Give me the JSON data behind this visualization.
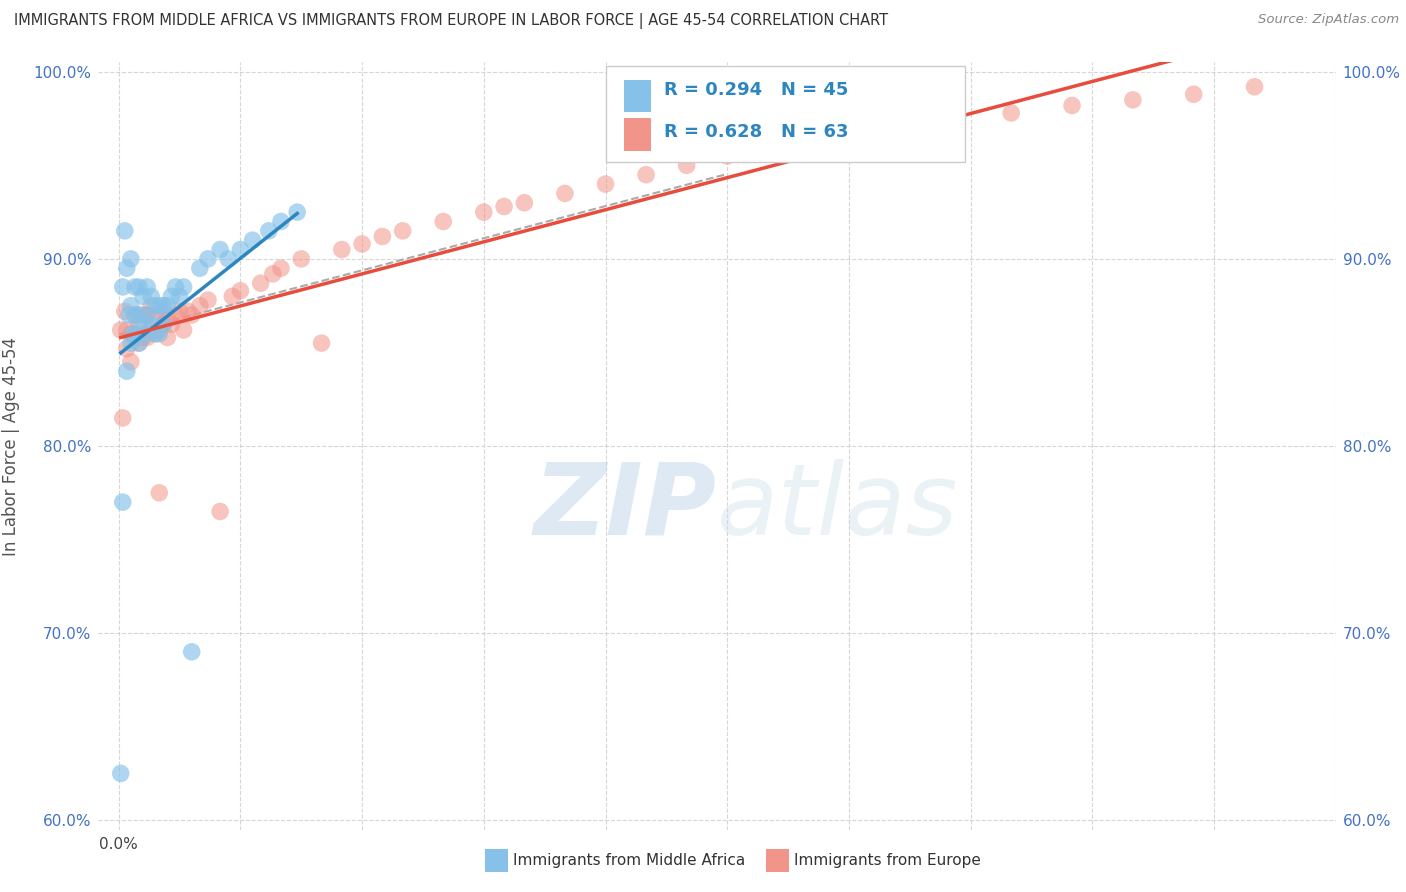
{
  "title": "IMMIGRANTS FROM MIDDLE AFRICA VS IMMIGRANTS FROM EUROPE IN LABOR FORCE | AGE 45-54 CORRELATION CHART",
  "source": "Source: ZipAtlas.com",
  "ylabel": "In Labor Force | Age 45-54",
  "legend_label1": "Immigrants from Middle Africa",
  "legend_label2": "Immigrants from Europe",
  "R1": 0.294,
  "N1": 45,
  "R2": 0.628,
  "N2": 63,
  "color_blue": "#85c1e9",
  "color_pink": "#f1948a",
  "color_blue_line": "#2e86c1",
  "color_pink_line": "#e74c3c",
  "watermark_color": "#d6eaf8",
  "blue_scatter_x": [
    0.0005,
    0.001,
    0.001,
    0.0015,
    0.002,
    0.002,
    0.0025,
    0.003,
    0.003,
    0.003,
    0.0035,
    0.004,
    0.004,
    0.0045,
    0.005,
    0.005,
    0.005,
    0.006,
    0.006,
    0.007,
    0.007,
    0.007,
    0.008,
    0.008,
    0.009,
    0.009,
    0.01,
    0.01,
    0.011,
    0.011,
    0.012,
    0.013,
    0.014,
    0.015,
    0.016,
    0.018,
    0.02,
    0.022,
    0.025,
    0.027,
    0.03,
    0.033,
    0.037,
    0.04,
    0.044
  ],
  "blue_scatter_y": [
    0.625,
    0.77,
    0.885,
    0.915,
    0.84,
    0.895,
    0.87,
    0.855,
    0.875,
    0.9,
    0.86,
    0.87,
    0.885,
    0.86,
    0.855,
    0.87,
    0.885,
    0.865,
    0.88,
    0.86,
    0.87,
    0.885,
    0.865,
    0.88,
    0.86,
    0.875,
    0.86,
    0.875,
    0.865,
    0.875,
    0.875,
    0.88,
    0.885,
    0.88,
    0.885,
    0.69,
    0.895,
    0.9,
    0.905,
    0.9,
    0.905,
    0.91,
    0.915,
    0.92,
    0.925
  ],
  "pink_scatter_x": [
    0.0005,
    0.001,
    0.0015,
    0.002,
    0.002,
    0.003,
    0.003,
    0.004,
    0.004,
    0.005,
    0.005,
    0.006,
    0.006,
    0.007,
    0.007,
    0.008,
    0.008,
    0.009,
    0.009,
    0.01,
    0.01,
    0.011,
    0.011,
    0.012,
    0.012,
    0.013,
    0.014,
    0.015,
    0.016,
    0.017,
    0.018,
    0.02,
    0.022,
    0.025,
    0.028,
    0.03,
    0.035,
    0.038,
    0.04,
    0.045,
    0.05,
    0.055,
    0.06,
    0.065,
    0.07,
    0.08,
    0.09,
    0.095,
    0.1,
    0.11,
    0.12,
    0.13,
    0.14,
    0.15,
    0.16,
    0.175,
    0.19,
    0.205,
    0.22,
    0.235,
    0.25,
    0.265,
    0.28
  ],
  "pink_scatter_y": [
    0.862,
    0.815,
    0.872,
    0.852,
    0.862,
    0.845,
    0.86,
    0.858,
    0.87,
    0.855,
    0.865,
    0.858,
    0.87,
    0.858,
    0.87,
    0.862,
    0.875,
    0.86,
    0.87,
    0.775,
    0.862,
    0.865,
    0.872,
    0.858,
    0.868,
    0.865,
    0.87,
    0.872,
    0.862,
    0.872,
    0.87,
    0.875,
    0.878,
    0.765,
    0.88,
    0.883,
    0.887,
    0.892,
    0.895,
    0.9,
    0.855,
    0.905,
    0.908,
    0.912,
    0.915,
    0.92,
    0.925,
    0.928,
    0.93,
    0.935,
    0.94,
    0.945,
    0.95,
    0.955,
    0.96,
    0.965,
    0.97,
    0.975,
    0.978,
    0.982,
    0.985,
    0.988,
    0.992
  ],
  "xlim": [
    -0.005,
    0.3
  ],
  "ylim": [
    0.595,
    1.005
  ],
  "yticks": [
    0.6,
    0.7,
    0.8,
    0.9,
    1.0
  ],
  "ytick_labels": [
    "60.0%",
    "70.0%",
    "80.0%",
    "90.0%",
    "100.0%"
  ],
  "xticks": [
    0.0,
    0.03,
    0.06,
    0.09,
    0.12,
    0.15,
    0.18,
    0.21,
    0.24,
    0.27,
    0.3
  ],
  "xtick_label_first": "0.0%",
  "background_color": "#ffffff",
  "grid_color": "#cccccc",
  "dashed_line_color": "#aaaaaa"
}
